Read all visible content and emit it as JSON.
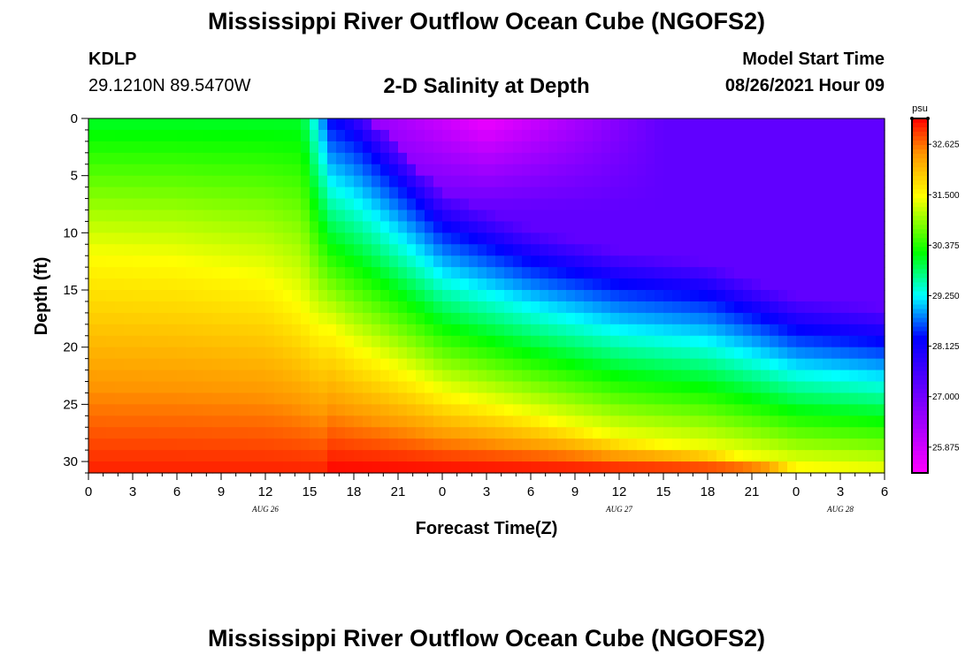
{
  "header": {
    "title": "Mississippi River Outflow Ocean Cube (NGOFS2)",
    "station_id": "KDLP",
    "station_coords": "29.1210N  89.5470W",
    "subtitle": "2-D Salinity at Depth",
    "model_start_label": "Model Start Time",
    "model_start_value": "08/26/2021 Hour 09"
  },
  "footer": {
    "title": "Mississippi River Outflow Ocean Cube (NGOFS2)"
  },
  "chart_data": {
    "type": "heatmap",
    "title": "2-D Salinity at Depth",
    "xlabel": "Forecast Time(Z)",
    "ylabel": "Depth (ft)",
    "x_ticks": [
      "0",
      "3",
      "6",
      "9",
      "12",
      "15",
      "18",
      "21",
      "0",
      "3",
      "6",
      "9",
      "12",
      "15",
      "18",
      "21",
      "0",
      "3",
      "6"
    ],
    "x_hours": [
      0,
      3,
      6,
      9,
      12,
      15,
      18,
      21,
      24,
      27,
      30,
      33,
      36,
      39,
      42,
      45,
      48,
      51,
      54
    ],
    "date_labels": [
      {
        "label": "AUG 26",
        "hour": 12
      },
      {
        "label": "AUG 27",
        "hour": 36
      },
      {
        "label": "AUG 28",
        "hour": 51
      }
    ],
    "y_ticks": [
      0,
      5,
      10,
      15,
      20,
      25,
      30
    ],
    "ylim": [
      0,
      31
    ],
    "xlim": [
      0,
      54
    ],
    "colorbar": {
      "unit": "psu",
      "ticks": [
        "32.625",
        "31.500",
        "30.375",
        "29.250",
        "28.125",
        "27.000",
        "25.875"
      ],
      "tick_values": [
        32.625,
        31.5,
        30.375,
        29.25,
        28.125,
        27.0,
        25.875
      ],
      "range": [
        25.3,
        33.2
      ]
    },
    "field_description": {
      "x_hours": [
        0,
        6,
        12,
        15,
        16.5,
        18,
        24,
        30,
        36,
        42,
        48,
        54
      ],
      "upper_boundary_depth_ft": [
        -20,
        -20,
        -20,
        -20,
        0.2,
        1.5,
        9.5,
        12.5,
        14.5,
        15.5,
        18.5,
        19.5
      ],
      "lower_boundary_depth_ft": [
        12,
        12.5,
        14,
        17,
        18.5,
        20,
        24,
        26,
        28,
        29,
        30.5,
        31
      ],
      "cyan_front_depth_ft": [
        null,
        null,
        null,
        null,
        2.5,
        4.5,
        11.5,
        14.5,
        17.5,
        19.0,
        24.0,
        24.5
      ]
    }
  }
}
